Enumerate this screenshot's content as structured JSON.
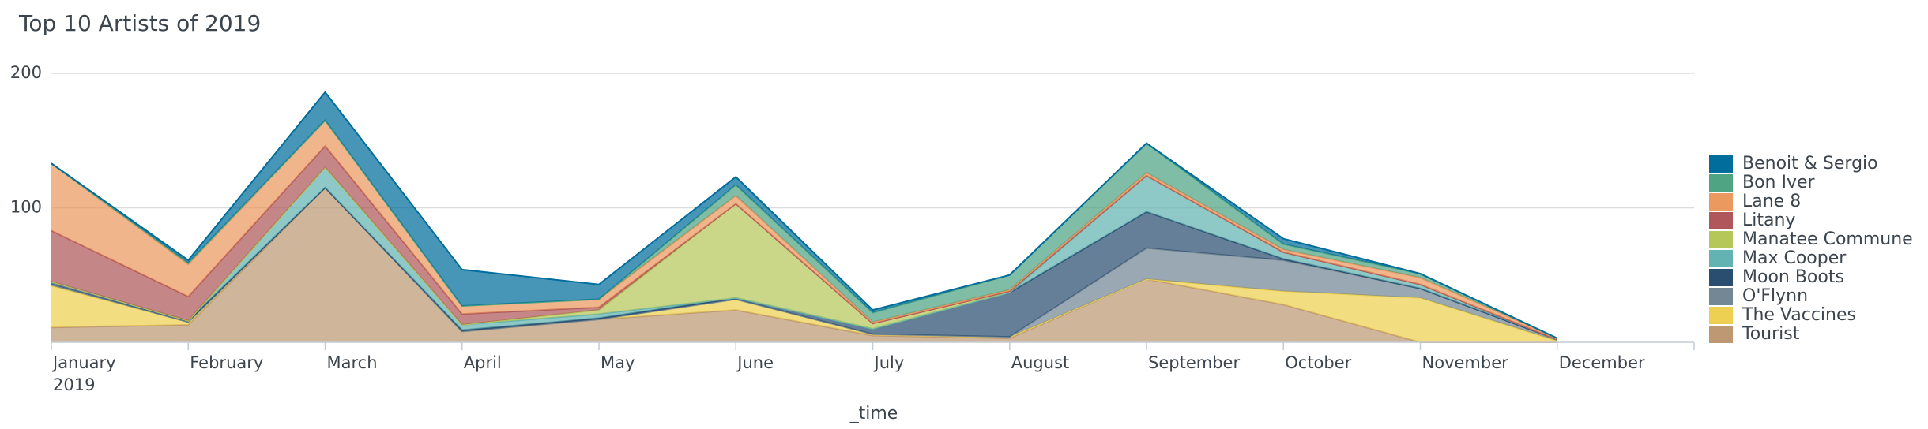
{
  "chart_data": {
    "type": "stacked_area",
    "title": "Top 10 Artists of 2019",
    "x_label": "_time",
    "year": "2019",
    "categories": [
      "January",
      "February",
      "March",
      "April",
      "May",
      "June",
      "July",
      "August",
      "September",
      "October",
      "November",
      "December"
    ],
    "ylim": [
      0,
      200
    ],
    "yticks": [
      100,
      200
    ],
    "grid": true,
    "legend": "right",
    "series": [
      {
        "name": "Benoit & Sergio",
        "color": "#006d9c",
        "values": [
          0,
          2,
          21,
          27,
          11,
          6,
          2,
          0,
          0,
          4,
          0,
          0
        ]
      },
      {
        "name": "Bon Iver",
        "color": "#4fa484",
        "values": [
          0,
          1,
          0,
          0,
          0,
          8,
          7,
          11,
          22,
          4,
          3,
          0
        ]
      },
      {
        "name": "Lane 8",
        "color": "#ec9960",
        "values": [
          50,
          24,
          19,
          6,
          6,
          6,
          1,
          1,
          2,
          2,
          5,
          1
        ]
      },
      {
        "name": "Litany",
        "color": "#af575a",
        "values": [
          38,
          18,
          16,
          8,
          2,
          0,
          0,
          0,
          0,
          0,
          0,
          0
        ]
      },
      {
        "name": "Manatee Commune",
        "color": "#b6c75a",
        "values": [
          0,
          0,
          0,
          0,
          3,
          70,
          4,
          1,
          0,
          0,
          0,
          0
        ]
      },
      {
        "name": "Max Cooper",
        "color": "#62b3b2",
        "values": [
          0,
          0,
          15,
          4,
          3,
          0,
          0,
          0,
          27,
          5,
          3,
          0
        ]
      },
      {
        "name": "Moon Boots",
        "color": "#294e70",
        "values": [
          2,
          1,
          0,
          1,
          1,
          1,
          4,
          33,
          27,
          1,
          0,
          0
        ]
      },
      {
        "name": "O'Flynn",
        "color": "#738795",
        "values": [
          1,
          0,
          0,
          0,
          0,
          0,
          0,
          0,
          23,
          23,
          7,
          1
        ]
      },
      {
        "name": "The Vaccines",
        "color": "#edd051",
        "values": [
          31,
          2,
          0,
          0,
          0,
          8,
          1,
          1,
          0,
          10,
          33,
          1
        ]
      },
      {
        "name": "Tourist",
        "color": "#bd9872",
        "values": [
          11,
          13,
          115,
          8,
          17,
          24,
          5,
          3,
          47,
          28,
          0,
          0
        ]
      }
    ]
  }
}
